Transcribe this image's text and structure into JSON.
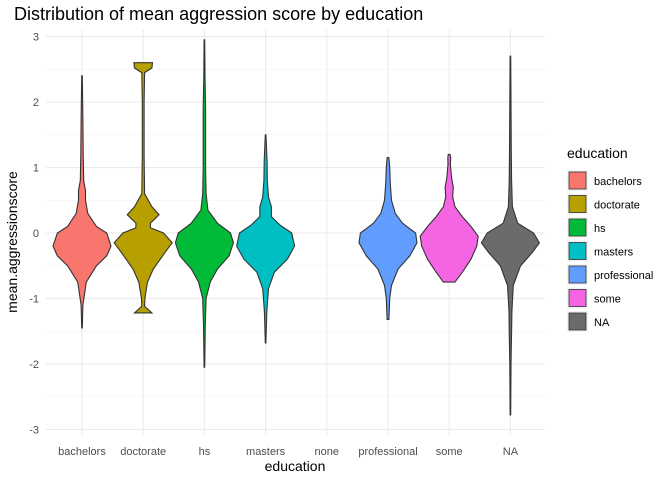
{
  "chart_data": {
    "type": "violin",
    "title": "Distribution of mean aggression score by education",
    "xlabel": "education",
    "ylabel": "mean.aggressionscore",
    "categories": [
      "bachelors",
      "doctorate",
      "hs",
      "masters",
      "none",
      "professional",
      "some",
      "NA"
    ],
    "ylim": [
      -3.1,
      3.1
    ],
    "yticks": [
      -3,
      -2,
      -1,
      0,
      1,
      2,
      3
    ],
    "grid": true,
    "legend": {
      "title": "education",
      "position": "right",
      "entries": [
        "bachelors",
        "doctorate",
        "hs",
        "masters",
        "professional",
        "some",
        "NA"
      ]
    },
    "series": [
      {
        "name": "bachelors",
        "color": "#F8766D",
        "min": -1.45,
        "max": 2.4,
        "profile": [
          [
            -1.45,
            0.01
          ],
          [
            -1.1,
            0.03
          ],
          [
            -0.75,
            0.15
          ],
          [
            -0.5,
            0.5
          ],
          [
            -0.35,
            0.85
          ],
          [
            -0.2,
            1.0
          ],
          [
            0.0,
            0.85
          ],
          [
            0.1,
            0.5
          ],
          [
            0.3,
            0.2
          ],
          [
            0.5,
            0.12
          ],
          [
            0.65,
            0.12
          ],
          [
            0.8,
            0.06
          ],
          [
            1.2,
            0.04
          ],
          [
            1.7,
            0.03
          ],
          [
            2.4,
            0.01
          ]
        ]
      },
      {
        "name": "doctorate",
        "color": "#B79F00",
        "min": -1.22,
        "max": 2.6,
        "profile": [
          [
            -1.22,
            0.3
          ],
          [
            -1.12,
            0.05
          ],
          [
            -1.0,
            0.06
          ],
          [
            -0.75,
            0.15
          ],
          [
            -0.55,
            0.35
          ],
          [
            -0.3,
            0.75
          ],
          [
            -0.15,
            1.0
          ],
          [
            0.0,
            0.7
          ],
          [
            0.08,
            0.25
          ],
          [
            0.15,
            0.25
          ],
          [
            0.28,
            0.55
          ],
          [
            0.4,
            0.3
          ],
          [
            0.6,
            0.05
          ],
          [
            1.2,
            0.03
          ],
          [
            2.0,
            0.03
          ],
          [
            2.45,
            0.05
          ],
          [
            2.52,
            0.3
          ],
          [
            2.6,
            0.32
          ]
        ]
      },
      {
        "name": "hs",
        "color": "#00BA38",
        "min": -2.05,
        "max": 2.95,
        "profile": [
          [
            -2.05,
            0.01
          ],
          [
            -1.4,
            0.03
          ],
          [
            -1.0,
            0.06
          ],
          [
            -0.75,
            0.2
          ],
          [
            -0.55,
            0.45
          ],
          [
            -0.35,
            0.85
          ],
          [
            -0.15,
            1.0
          ],
          [
            0.0,
            0.9
          ],
          [
            0.15,
            0.45
          ],
          [
            0.35,
            0.12
          ],
          [
            0.6,
            0.06
          ],
          [
            1.0,
            0.04
          ],
          [
            1.9,
            0.04
          ],
          [
            2.4,
            0.02
          ],
          [
            2.95,
            0.01
          ]
        ]
      },
      {
        "name": "masters",
        "color": "#00BFC4",
        "min": -1.68,
        "max": 1.5,
        "profile": [
          [
            -1.68,
            0.01
          ],
          [
            -1.2,
            0.04
          ],
          [
            -0.85,
            0.1
          ],
          [
            -0.6,
            0.3
          ],
          [
            -0.4,
            0.75
          ],
          [
            -0.2,
            1.0
          ],
          [
            0.0,
            0.9
          ],
          [
            0.12,
            0.5
          ],
          [
            0.25,
            0.2
          ],
          [
            0.4,
            0.2
          ],
          [
            0.55,
            0.1
          ],
          [
            0.8,
            0.06
          ],
          [
            1.1,
            0.05
          ],
          [
            1.5,
            0.01
          ]
        ]
      },
      {
        "name": "professional",
        "color": "#619CFF",
        "min": -1.32,
        "max": 1.15,
        "profile": [
          [
            -1.32,
            0.03
          ],
          [
            -1.0,
            0.06
          ],
          [
            -0.8,
            0.12
          ],
          [
            -0.55,
            0.35
          ],
          [
            -0.35,
            0.75
          ],
          [
            -0.15,
            1.0
          ],
          [
            0.0,
            0.95
          ],
          [
            0.15,
            0.5
          ],
          [
            0.3,
            0.25
          ],
          [
            0.5,
            0.12
          ],
          [
            0.75,
            0.08
          ],
          [
            1.0,
            0.06
          ],
          [
            1.15,
            0.03
          ]
        ]
      },
      {
        "name": "some",
        "color": "#F564E3",
        "min": -0.75,
        "max": 1.2,
        "profile": [
          [
            -0.75,
            0.2
          ],
          [
            -0.6,
            0.45
          ],
          [
            -0.4,
            0.75
          ],
          [
            -0.2,
            0.95
          ],
          [
            -0.05,
            1.0
          ],
          [
            0.1,
            0.75
          ],
          [
            0.25,
            0.45
          ],
          [
            0.4,
            0.2
          ],
          [
            0.55,
            0.12
          ],
          [
            0.7,
            0.14
          ],
          [
            0.85,
            0.08
          ],
          [
            1.05,
            0.04
          ],
          [
            1.15,
            0.05
          ],
          [
            1.2,
            0.03
          ]
        ]
      },
      {
        "name": "NA",
        "color": "#6B6B6B",
        "min": -2.78,
        "max": 2.7,
        "profile": [
          [
            -2.78,
            0.01
          ],
          [
            -2.0,
            0.02
          ],
          [
            -1.5,
            0.04
          ],
          [
            -1.2,
            0.05
          ],
          [
            -0.8,
            0.1
          ],
          [
            -0.5,
            0.35
          ],
          [
            -0.3,
            0.75
          ],
          [
            -0.15,
            1.0
          ],
          [
            0.0,
            0.8
          ],
          [
            0.15,
            0.25
          ],
          [
            0.4,
            0.07
          ],
          [
            0.8,
            0.04
          ],
          [
            1.2,
            0.03
          ],
          [
            2.0,
            0.02
          ],
          [
            2.7,
            0.01
          ]
        ]
      }
    ]
  }
}
